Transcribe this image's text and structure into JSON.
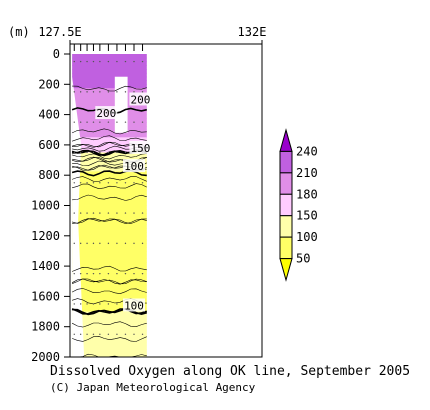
{
  "chart_data": {
    "type": "heatmap",
    "title": "Dissolved Oxygen along OK line, September 2005",
    "credit": "(C) Japan Meteorological Agency",
    "x_axis": {
      "range": [
        127.5,
        132
      ],
      "end_labels": [
        "127.5E",
        "132E"
      ]
    },
    "y_axis": {
      "unit_label": "(m)",
      "range": [
        0,
        2000
      ],
      "inverted": true,
      "ticks": [
        0,
        200,
        400,
        600,
        800,
        1000,
        1200,
        1400,
        1600,
        1800,
        2000
      ]
    },
    "station_longitudes": [
      127.6,
      127.75,
      127.9,
      128.05,
      128.2,
      128.4,
      128.6,
      128.8,
      129.0,
      129.2
    ],
    "section_lon_range": [
      127.55,
      129.3
    ],
    "legend": {
      "position": "right",
      "levels": [
        50,
        100,
        150,
        180,
        210,
        240
      ],
      "bins": [
        {
          "from": 0,
          "to": 50,
          "color": "#ffff00"
        },
        {
          "from": 50,
          "to": 100,
          "color": "#ffff66"
        },
        {
          "from": 100,
          "to": 150,
          "color": "#ffffaa"
        },
        {
          "from": 150,
          "to": 180,
          "color": "#ffccff"
        },
        {
          "from": 180,
          "to": 210,
          "color": "#e08ee8"
        },
        {
          "from": 210,
          "to": 240,
          "color": "#c060e0"
        },
        {
          "from": 240,
          "to": 300,
          "color": "#9900cc"
        }
      ]
    },
    "profile": {
      "depths": [
        0,
        100,
        200,
        300,
        400,
        500,
        550,
        600,
        650,
        700,
        750,
        800,
        900,
        1000,
        1100,
        1200,
        1300,
        1400,
        1500,
        1600,
        1700,
        1800,
        1900,
        2000
      ],
      "values": [
        215,
        218,
        212,
        205,
        198,
        192,
        182,
        170,
        150,
        130,
        110,
        95,
        75,
        65,
        60,
        57,
        56,
        58,
        70,
        85,
        100,
        112,
        122,
        130
      ]
    },
    "missing_data_box": {
      "lon": [
        128.55,
        128.85
      ],
      "depth": [
        150,
        520
      ]
    },
    "contour_labels": [
      {
        "text": "200",
        "lon": 128.35,
        "depth": 390
      },
      {
        "text": "200",
        "lon": 129.15,
        "depth": 300
      },
      {
        "text": "150",
        "lon": 129.15,
        "depth": 620
      },
      {
        "text": "100",
        "lon": 129.0,
        "depth": 740
      },
      {
        "text": "100",
        "lon": 129.0,
        "depth": 1660
      }
    ]
  }
}
